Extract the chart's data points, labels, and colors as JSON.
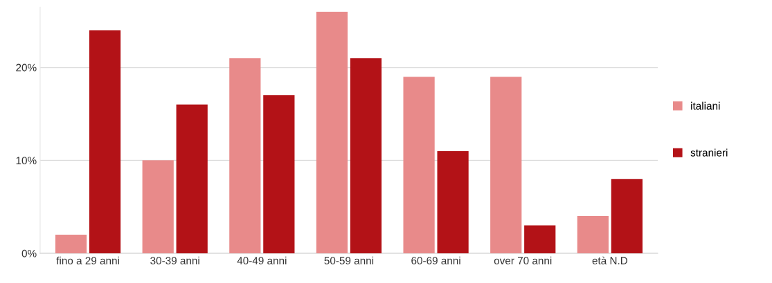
{
  "chart_data": {
    "type": "bar",
    "categories": [
      "fino a 29 anni",
      "30-39 anni",
      "40-49 anni",
      "50-59 anni",
      "60-69 anni",
      "over 70 anni",
      "età N.D"
    ],
    "series": [
      {
        "name": "italiani",
        "color": "#e88a8a",
        "values": [
          2,
          10,
          21,
          26,
          19,
          19,
          4
        ]
      },
      {
        "name": "stranieri",
        "color": "#b31217",
        "values": [
          24,
          16,
          17,
          21,
          11,
          3,
          8
        ]
      }
    ],
    "ylim": [
      0,
      26.5
    ],
    "yticks": [
      {
        "value": 0,
        "label": "0%"
      },
      {
        "value": 10,
        "label": "10%"
      },
      {
        "value": 20,
        "label": "20%"
      }
    ],
    "grid": "y",
    "legend": "right"
  }
}
